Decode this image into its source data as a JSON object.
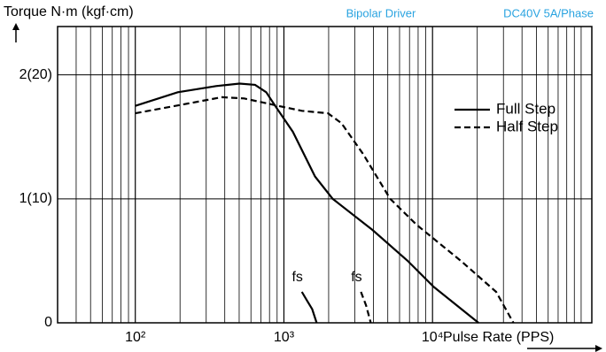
{
  "chart_data": {
    "type": "line",
    "title": "Bipolar Driver",
    "subtitle": "DC40V 5A/Phase",
    "y_label": "Torque N·m (kgf·cm)",
    "x_label": "Pulse Rate (PPS)",
    "log_x": true,
    "grid": true,
    "legend": "upper right",
    "xlim": [
      30,
      118000
    ],
    "ylim": [
      0,
      2.39
    ],
    "xticks": [
      {
        "value": 100,
        "label": "10²"
      },
      {
        "value": 1000,
        "label": "10³"
      },
      {
        "value": 10000,
        "label": "10⁴"
      }
    ],
    "xminorticks": [
      40,
      50,
      60,
      70,
      80,
      90,
      200,
      300,
      400,
      500,
      600,
      700,
      800,
      900,
      2000,
      3000,
      4000,
      5000,
      6000,
      7000,
      8000,
      9000,
      20000,
      30000,
      40000,
      50000,
      60000,
      70000,
      80000,
      90000,
      100000
    ],
    "yticks": [
      0,
      {
        "value": 1,
        "label": "1(10)"
      },
      {
        "value": 2,
        "label": "2(20)"
      }
    ],
    "series": [
      {
        "name": "Full Step",
        "color": "#000000",
        "dashed": false,
        "x": [
          100,
          193,
          350,
          503,
          640,
          760,
          873,
          1150,
          1620,
          2130,
          3940,
          6800,
          10200,
          20400
        ],
        "values": [
          1.75,
          1.86,
          1.91,
          1.93,
          1.92,
          1.86,
          1.75,
          1.54,
          1.18,
          1.0,
          0.75,
          0.5,
          0.29,
          0
        ]
      },
      {
        "name": "Half Step",
        "color": "#000000",
        "dashed": true,
        "x": [
          100,
          383,
          540,
          1000,
          1320,
          1980,
          2440,
          3420,
          5190,
          7830,
          15500,
          26800,
          35000
        ],
        "values": [
          1.69,
          1.82,
          1.81,
          1.74,
          1.71,
          1.69,
          1.61,
          1.36,
          1.0,
          0.79,
          0.5,
          0.25,
          0
        ]
      }
    ],
    "fs_lines": [
      {
        "label": "fs",
        "dashed": false,
        "x": [
          1320,
          1430,
          1550,
          1660
        ],
        "values": [
          0.25,
          0.18,
          0.11,
          0
        ]
      },
      {
        "label": "fs",
        "dashed": true,
        "x": [
          3300,
          3570,
          3840
        ],
        "values": [
          0.25,
          0.14,
          0
        ]
      }
    ]
  }
}
